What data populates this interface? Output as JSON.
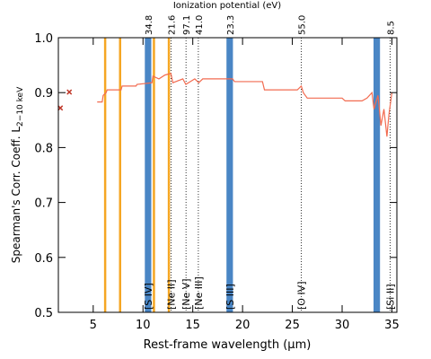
{
  "chart_data": {
    "type": "line",
    "top_axis_label": "Ionization potential (eV)",
    "x_label": "Rest-frame wavelength (μm)",
    "y_label": "Spearman's Corr. Coeff. L",
    "y_label_subscript": "2−10 keV",
    "xlim": [
      1.5,
      35.5
    ],
    "ylim": [
      0.5,
      1.0
    ],
    "xticks": [
      5,
      10,
      15,
      20,
      25,
      30,
      35
    ],
    "yticks": [
      0.5,
      0.6,
      0.7,
      0.8,
      0.9,
      {
        "value": 1,
        "label": "1.0"
      }
    ],
    "series": [
      {
        "color": "#f26b50",
        "x": [
          5.4,
          5.9,
          6.0,
          6.3,
          6.4,
          7.8,
          7.9,
          9.3,
          9.4,
          10.9,
          11.0,
          11.6,
          12.2,
          12.8,
          13.0,
          14.0,
          14.3,
          15.2,
          15.6,
          16.0,
          19.0,
          19.2,
          22.0,
          22.2,
          25.5,
          25.9,
          26.1,
          26.5,
          30.0,
          30.3,
          32.0,
          32.5,
          33.0,
          33.2,
          33.6,
          33.9,
          34.2,
          34.5,
          34.7,
          35.0
        ],
        "values": [
          0.883,
          0.883,
          0.895,
          0.9,
          0.905,
          0.905,
          0.912,
          0.912,
          0.915,
          0.918,
          0.93,
          0.925,
          0.932,
          0.935,
          0.918,
          0.925,
          0.915,
          0.925,
          0.918,
          0.925,
          0.925,
          0.92,
          0.92,
          0.905,
          0.905,
          0.912,
          0.9,
          0.89,
          0.89,
          0.885,
          0.885,
          0.89,
          0.9,
          0.87,
          0.895,
          0.84,
          0.87,
          0.82,
          0.86,
          0.9
        ]
      }
    ],
    "points": {
      "color": "#c0392b",
      "x": [
        1.7,
        2.6
      ],
      "values": [
        0.872,
        0.901
      ]
    },
    "orange_lines": {
      "color": "#f5a623",
      "x": [
        6.2,
        7.7,
        11.1,
        12.6
      ]
    },
    "blue_bands": {
      "color": "#4a86c5",
      "x": [
        10.51,
        18.71,
        33.48
      ]
    },
    "lines": [
      {
        "x": 10.51,
        "label": "[S IV]",
        "ip": "34.8"
      },
      {
        "x": 12.81,
        "label": "[Ne II]",
        "ip": "21.6"
      },
      {
        "x": 14.32,
        "label": "[Ne V]",
        "ip": "97.1"
      },
      {
        "x": 15.56,
        "label": "[Ne III]",
        "ip": "41.0"
      },
      {
        "x": 18.71,
        "label": "[S III]",
        "ip": "23.3"
      },
      {
        "x": 25.89,
        "label": "[O IV]",
        "ip": "55.0"
      },
      {
        "x": 34.82,
        "label": "[Si II]",
        "ip": "8.5"
      }
    ]
  }
}
